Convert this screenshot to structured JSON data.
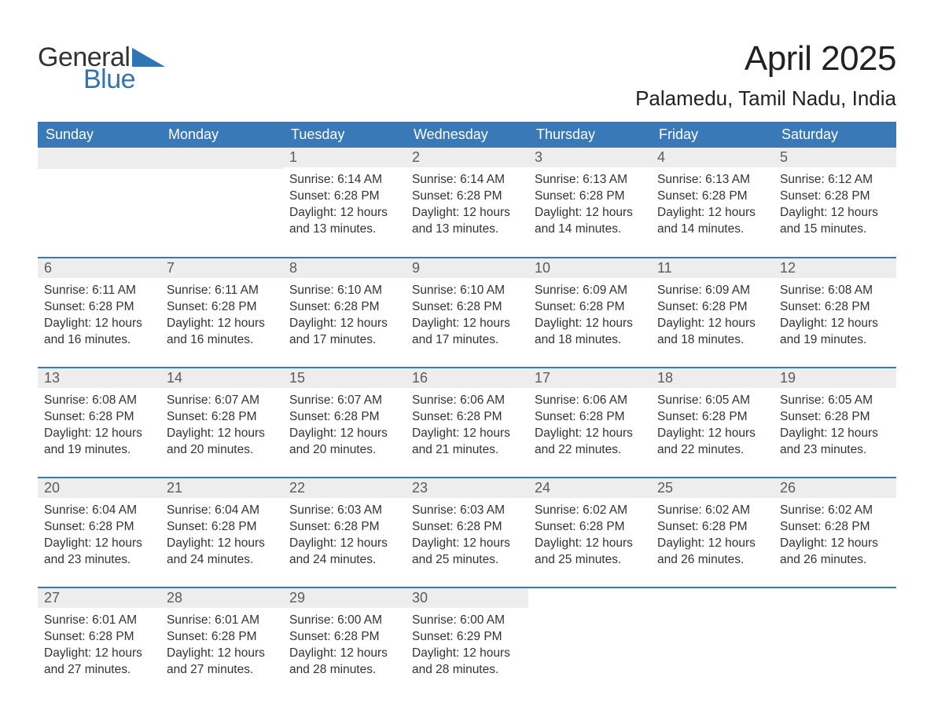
{
  "logo": {
    "word1": "General",
    "word2": "Blue",
    "gray": "#333333",
    "blue": "#2f74b5"
  },
  "header": {
    "month_title": "April 2025",
    "location": "Palamedu, Tamil Nadu, India"
  },
  "colors": {
    "header_bg": "#3a79b7",
    "header_fg": "#ffffff",
    "band_bg": "#ededed",
    "band_fg": "#5b5b5b",
    "body_fg": "#333333",
    "row_border": "#3a79b7",
    "page_bg": "#ffffff"
  },
  "day_headers": [
    "Sunday",
    "Monday",
    "Tuesday",
    "Wednesday",
    "Thursday",
    "Friday",
    "Saturday"
  ],
  "weeks": [
    [
      null,
      null,
      {
        "n": "1",
        "sr": "Sunrise: 6:14 AM",
        "ss": "Sunset: 6:28 PM",
        "d1": "Daylight: 12 hours",
        "d2": "and 13 minutes."
      },
      {
        "n": "2",
        "sr": "Sunrise: 6:14 AM",
        "ss": "Sunset: 6:28 PM",
        "d1": "Daylight: 12 hours",
        "d2": "and 13 minutes."
      },
      {
        "n": "3",
        "sr": "Sunrise: 6:13 AM",
        "ss": "Sunset: 6:28 PM",
        "d1": "Daylight: 12 hours",
        "d2": "and 14 minutes."
      },
      {
        "n": "4",
        "sr": "Sunrise: 6:13 AM",
        "ss": "Sunset: 6:28 PM",
        "d1": "Daylight: 12 hours",
        "d2": "and 14 minutes."
      },
      {
        "n": "5",
        "sr": "Sunrise: 6:12 AM",
        "ss": "Sunset: 6:28 PM",
        "d1": "Daylight: 12 hours",
        "d2": "and 15 minutes."
      }
    ],
    [
      {
        "n": "6",
        "sr": "Sunrise: 6:11 AM",
        "ss": "Sunset: 6:28 PM",
        "d1": "Daylight: 12 hours",
        "d2": "and 16 minutes."
      },
      {
        "n": "7",
        "sr": "Sunrise: 6:11 AM",
        "ss": "Sunset: 6:28 PM",
        "d1": "Daylight: 12 hours",
        "d2": "and 16 minutes."
      },
      {
        "n": "8",
        "sr": "Sunrise: 6:10 AM",
        "ss": "Sunset: 6:28 PM",
        "d1": "Daylight: 12 hours",
        "d2": "and 17 minutes."
      },
      {
        "n": "9",
        "sr": "Sunrise: 6:10 AM",
        "ss": "Sunset: 6:28 PM",
        "d1": "Daylight: 12 hours",
        "d2": "and 17 minutes."
      },
      {
        "n": "10",
        "sr": "Sunrise: 6:09 AM",
        "ss": "Sunset: 6:28 PM",
        "d1": "Daylight: 12 hours",
        "d2": "and 18 minutes."
      },
      {
        "n": "11",
        "sr": "Sunrise: 6:09 AM",
        "ss": "Sunset: 6:28 PM",
        "d1": "Daylight: 12 hours",
        "d2": "and 18 minutes."
      },
      {
        "n": "12",
        "sr": "Sunrise: 6:08 AM",
        "ss": "Sunset: 6:28 PM",
        "d1": "Daylight: 12 hours",
        "d2": "and 19 minutes."
      }
    ],
    [
      {
        "n": "13",
        "sr": "Sunrise: 6:08 AM",
        "ss": "Sunset: 6:28 PM",
        "d1": "Daylight: 12 hours",
        "d2": "and 19 minutes."
      },
      {
        "n": "14",
        "sr": "Sunrise: 6:07 AM",
        "ss": "Sunset: 6:28 PM",
        "d1": "Daylight: 12 hours",
        "d2": "and 20 minutes."
      },
      {
        "n": "15",
        "sr": "Sunrise: 6:07 AM",
        "ss": "Sunset: 6:28 PM",
        "d1": "Daylight: 12 hours",
        "d2": "and 20 minutes."
      },
      {
        "n": "16",
        "sr": "Sunrise: 6:06 AM",
        "ss": "Sunset: 6:28 PM",
        "d1": "Daylight: 12 hours",
        "d2": "and 21 minutes."
      },
      {
        "n": "17",
        "sr": "Sunrise: 6:06 AM",
        "ss": "Sunset: 6:28 PM",
        "d1": "Daylight: 12 hours",
        "d2": "and 22 minutes."
      },
      {
        "n": "18",
        "sr": "Sunrise: 6:05 AM",
        "ss": "Sunset: 6:28 PM",
        "d1": "Daylight: 12 hours",
        "d2": "and 22 minutes."
      },
      {
        "n": "19",
        "sr": "Sunrise: 6:05 AM",
        "ss": "Sunset: 6:28 PM",
        "d1": "Daylight: 12 hours",
        "d2": "and 23 minutes."
      }
    ],
    [
      {
        "n": "20",
        "sr": "Sunrise: 6:04 AM",
        "ss": "Sunset: 6:28 PM",
        "d1": "Daylight: 12 hours",
        "d2": "and 23 minutes."
      },
      {
        "n": "21",
        "sr": "Sunrise: 6:04 AM",
        "ss": "Sunset: 6:28 PM",
        "d1": "Daylight: 12 hours",
        "d2": "and 24 minutes."
      },
      {
        "n": "22",
        "sr": "Sunrise: 6:03 AM",
        "ss": "Sunset: 6:28 PM",
        "d1": "Daylight: 12 hours",
        "d2": "and 24 minutes."
      },
      {
        "n": "23",
        "sr": "Sunrise: 6:03 AM",
        "ss": "Sunset: 6:28 PM",
        "d1": "Daylight: 12 hours",
        "d2": "and 25 minutes."
      },
      {
        "n": "24",
        "sr": "Sunrise: 6:02 AM",
        "ss": "Sunset: 6:28 PM",
        "d1": "Daylight: 12 hours",
        "d2": "and 25 minutes."
      },
      {
        "n": "25",
        "sr": "Sunrise: 6:02 AM",
        "ss": "Sunset: 6:28 PM",
        "d1": "Daylight: 12 hours",
        "d2": "and 26 minutes."
      },
      {
        "n": "26",
        "sr": "Sunrise: 6:02 AM",
        "ss": "Sunset: 6:28 PM",
        "d1": "Daylight: 12 hours",
        "d2": "and 26 minutes."
      }
    ],
    [
      {
        "n": "27",
        "sr": "Sunrise: 6:01 AM",
        "ss": "Sunset: 6:28 PM",
        "d1": "Daylight: 12 hours",
        "d2": "and 27 minutes."
      },
      {
        "n": "28",
        "sr": "Sunrise: 6:01 AM",
        "ss": "Sunset: 6:28 PM",
        "d1": "Daylight: 12 hours",
        "d2": "and 27 minutes."
      },
      {
        "n": "29",
        "sr": "Sunrise: 6:00 AM",
        "ss": "Sunset: 6:28 PM",
        "d1": "Daylight: 12 hours",
        "d2": "and 28 minutes."
      },
      {
        "n": "30",
        "sr": "Sunrise: 6:00 AM",
        "ss": "Sunset: 6:29 PM",
        "d1": "Daylight: 12 hours",
        "d2": "and 28 minutes."
      },
      null,
      null,
      null
    ]
  ]
}
